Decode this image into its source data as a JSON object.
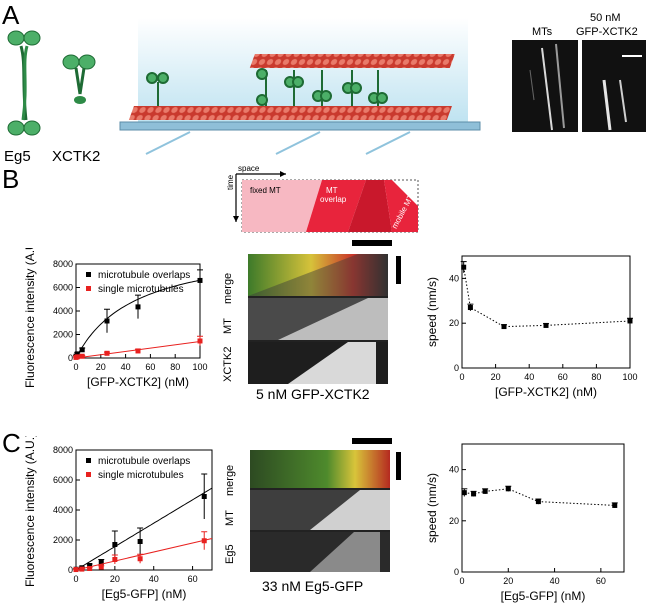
{
  "panels": {
    "A": "A",
    "B": "B",
    "C": "C"
  },
  "panelA": {
    "motor1": "Eg5",
    "motor2": "XCTK2",
    "img_label1": "MTs",
    "img_label2_line1": "50 nM",
    "img_label2_line2": "GFP-XCTK2"
  },
  "schematic": {
    "space": "space",
    "time": "time",
    "fixed": "fixed MT",
    "overlap_line1": "MT",
    "overlap_line2": "overlap",
    "mobile": "mobile MT"
  },
  "panelB": {
    "kymo_caption": "5 nM GFP-XCTK2",
    "kymo_labels": [
      "merge",
      "MT",
      "XCTK2"
    ]
  },
  "panelC": {
    "kymo_caption": "33 nM Eg5-GFP",
    "kymo_labels": [
      "merge",
      "MT",
      "Eg5"
    ]
  },
  "colors": {
    "black_series": "#000000",
    "red_series": "#e8211f",
    "pink": "#f7b8c2",
    "red_block": "#e8243c",
    "schematic_bg": "#cfe9f3"
  },
  "chart_data": [
    {
      "id": "B-fluorescence",
      "type": "scatter",
      "xlabel": "[GFP-XCTK2] (nM)",
      "ylabel": "Fluorescence intensity (A.U.)",
      "xlim": [
        0,
        100
      ],
      "ylim": [
        0,
        8000
      ],
      "xticks": [
        0,
        20,
        40,
        60,
        80,
        100
      ],
      "yticks": [
        0,
        2000,
        4000,
        6000,
        8000
      ],
      "legend": "top-left",
      "series": [
        {
          "name": "microtubule overlaps",
          "color": "#000000",
          "x": [
            0,
            1,
            5,
            25,
            50,
            100
          ],
          "y": [
            150,
            350,
            700,
            3150,
            4350,
            6600
          ],
          "err": [
            50,
            100,
            150,
            1000,
            1000,
            900
          ]
        },
        {
          "name": "single microtubules",
          "color": "#e8211f",
          "x": [
            0,
            1,
            5,
            25,
            50,
            100
          ],
          "y": [
            50,
            100,
            150,
            400,
            600,
            1450
          ],
          "err": [
            30,
            40,
            50,
            100,
            150,
            400
          ]
        }
      ]
    },
    {
      "id": "B-speed",
      "type": "scatter",
      "xlabel": "[GFP-XCTK2] (nM)",
      "ylabel": "speed (nm/s)",
      "xlim": [
        0,
        100
      ],
      "ylim": [
        0,
        50
      ],
      "xticks": [
        0,
        20,
        40,
        60,
        80,
        100
      ],
      "yticks": [
        0,
        20,
        40
      ],
      "series": [
        {
          "x": [
            1,
            5,
            25,
            50,
            100
          ],
          "y": [
            45,
            27,
            18.5,
            19,
            21
          ],
          "err": [
            2.5,
            1.5,
            0.8,
            0.8,
            1.2
          ]
        }
      ]
    },
    {
      "id": "C-fluorescence",
      "type": "scatter",
      "xlabel": "[Eg5-GFP] (nM)",
      "ylabel": "Fluorescence intensity (A.U.)",
      "xlim": [
        0,
        70
      ],
      "ylim": [
        0,
        8000
      ],
      "xticks": [
        0,
        20,
        40,
        60
      ],
      "yticks": [
        0,
        2000,
        4000,
        6000,
        8000
      ],
      "legend": "top-left",
      "series": [
        {
          "name": "microtubule overlaps",
          "color": "#000000",
          "x": [
            0,
            3,
            7,
            13,
            20,
            33,
            66
          ],
          "y": [
            50,
            150,
            300,
            500,
            1700,
            1900,
            4900
          ],
          "err": [
            30,
            50,
            100,
            200,
            900,
            900,
            1500
          ]
        },
        {
          "name": "single microtubules",
          "color": "#e8211f",
          "x": [
            0,
            3,
            7,
            13,
            20,
            33,
            66
          ],
          "y": [
            30,
            60,
            100,
            200,
            700,
            750,
            1950
          ],
          "err": [
            20,
            30,
            50,
            80,
            300,
            300,
            600
          ]
        }
      ]
    },
    {
      "id": "C-speed",
      "type": "scatter",
      "xlabel": "[Eg5-GFP] (nM)",
      "ylabel": "speed (nm/s)",
      "xlim": [
        0,
        70
      ],
      "ylim": [
        0,
        50
      ],
      "xticks": [
        0,
        20,
        40,
        60
      ],
      "yticks": [
        0,
        20,
        40
      ],
      "series": [
        {
          "x": [
            1,
            5,
            10,
            20,
            33,
            66
          ],
          "y": [
            31,
            30.5,
            31.5,
            32.5,
            27.5,
            26
          ],
          "err": [
            1.5,
            1,
            1,
            1,
            1,
            1
          ]
        }
      ]
    }
  ]
}
